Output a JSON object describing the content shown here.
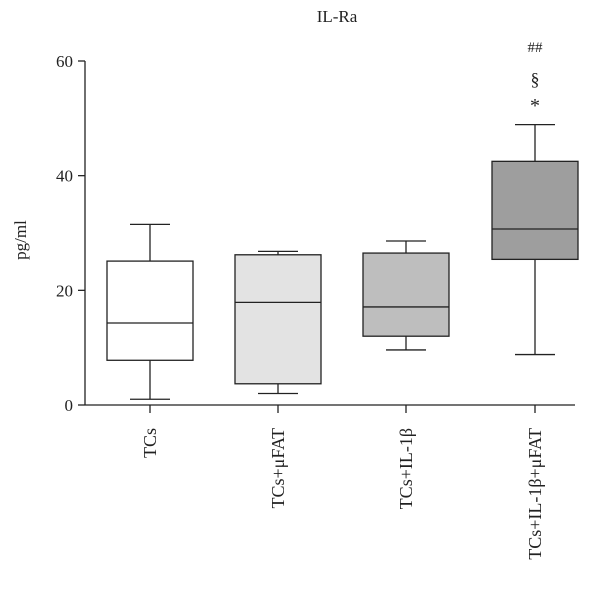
{
  "chart_data": {
    "type": "box",
    "title": "IL-Ra",
    "ylabel": "pg/ml",
    "xlabel": "",
    "ylim": [
      0,
      60
    ],
    "yticks": [
      0,
      20,
      40,
      60
    ],
    "grid": false,
    "categories": [
      "TCs",
      "TCs+μFAT",
      "TCs+IL-1β",
      "TCs+IL-1β+μFAT"
    ],
    "boxes": [
      {
        "min": 1,
        "q1": 7.8,
        "median": 14.3,
        "q3": 25.1,
        "max": 31.5,
        "color": "#ffffff"
      },
      {
        "min": 2.0,
        "q1": 3.7,
        "median": 17.9,
        "q3": 26.2,
        "max": 26.8,
        "color": "#e3e3e3"
      },
      {
        "min": 9.6,
        "q1": 12.0,
        "median": 17.1,
        "q3": 26.5,
        "max": 28.6,
        "color": "#bebebe"
      },
      {
        "min": 8.8,
        "q1": 25.4,
        "median": 30.7,
        "q3": 42.5,
        "max": 48.9,
        "color": "#9e9e9e"
      }
    ],
    "annotations": [
      {
        "category": 3,
        "lines": [
          "##",
          "§",
          "*"
        ]
      }
    ]
  }
}
